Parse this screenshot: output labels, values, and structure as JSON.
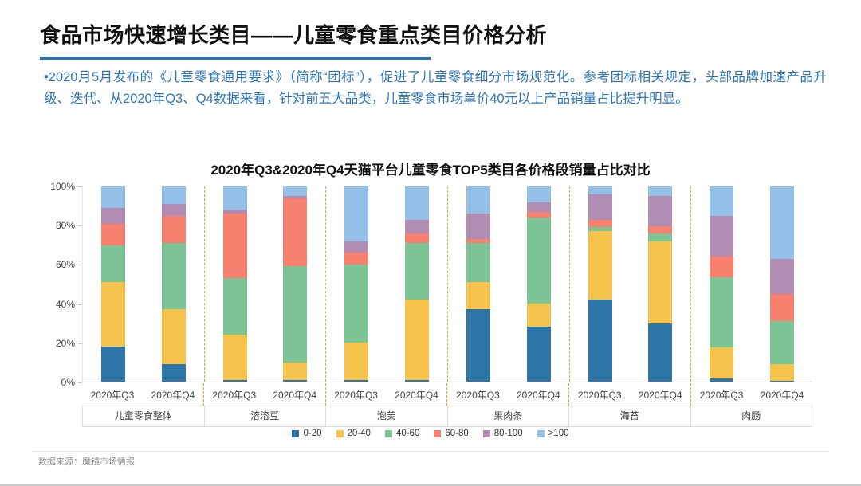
{
  "slide": {
    "title": "食品市场快速增长类目——儿童零食重点类目价格分析",
    "accent_color": "#2E74B5",
    "body_text": "•2020月5月发布的《儿童零食通用要求》（简称“团标”），促进了儿童零食细分市场规范化。参考团标相关规定，头部品牌加速产品升级、迭代、从2020年Q3、Q4数据来看，针对前五大品类，儿童零食市场单价40元以上产品销量占比提升明显。",
    "body_text_color": "#2E75B6",
    "source_note": "数据来源：魔镜市场情报"
  },
  "chart_data": {
    "type": "bar",
    "stacked": true,
    "percent": true,
    "title": "2020年Q3&2020年Q4天猫平台儿童零食TOP5类目各价格段销量占比对比",
    "categories": [
      "儿童零食整体",
      "溶溶豆",
      "泡芙",
      "果肉条",
      "海苔",
      "肉肠"
    ],
    "x_sublabels": [
      "2020年Q3",
      "2020年Q4"
    ],
    "yticks": [
      "100%",
      "80%",
      "60%",
      "40%",
      "20%",
      "0%"
    ],
    "ylim": [
      0,
      100
    ],
    "grid": false,
    "legend_position": "bottom",
    "group_separator_color": "#e3a63c",
    "series": [
      {
        "name": "0-20",
        "color": "#2E75A8",
        "values": [
          18,
          9,
          1,
          1,
          1,
          1,
          37,
          28,
          42,
          30,
          1.5,
          0.5
        ]
      },
      {
        "name": "20-40",
        "color": "#F5C24B",
        "values": [
          33,
          28,
          23,
          9,
          19,
          41,
          14,
          12,
          35,
          42,
          16,
          8.5
        ]
      },
      {
        "name": "40-60",
        "color": "#7CC495",
        "values": [
          19,
          34,
          29,
          49,
          40,
          29,
          20,
          44,
          2,
          4,
          36,
          22
        ]
      },
      {
        "name": "60-80",
        "color": "#F8806E",
        "values": [
          11,
          14,
          33,
          35,
          6,
          5,
          2,
          3,
          4,
          3.5,
          10.5,
          14
        ]
      },
      {
        "name": "80-100",
        "color": "#B18DB4",
        "values": [
          8,
          6,
          2,
          1,
          6,
          7,
          13,
          5,
          13,
          15.5,
          21,
          18
        ]
      },
      {
        "name": ">100",
        "color": "#94C0E8",
        "values": [
          11,
          9,
          12,
          5,
          28,
          17,
          14,
          8,
          4,
          5,
          15,
          37
        ]
      }
    ]
  }
}
